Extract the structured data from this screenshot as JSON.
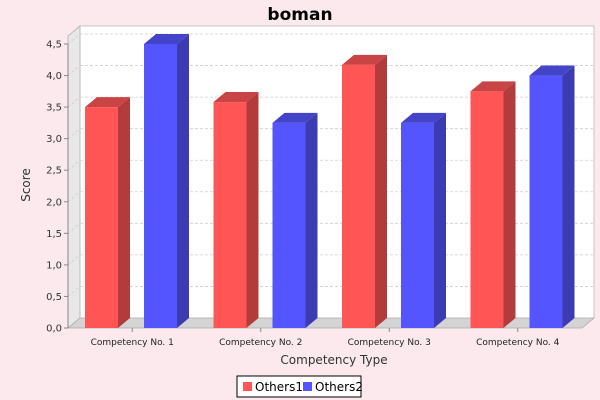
{
  "chart_data": {
    "type": "bar",
    "title": "boman",
    "xlabel": "Competency Type",
    "ylabel": "Score",
    "categories": [
      "Competency No. 1",
      "Competency No. 2",
      "Competency No. 3",
      "Competency No. 4"
    ],
    "series": [
      {
        "name": "Others1",
        "values": [
          3.5,
          3.58,
          4.17,
          3.75
        ]
      },
      {
        "name": "Others2",
        "values": [
          4.5,
          3.25,
          3.25,
          4.0
        ]
      }
    ],
    "ylim": [
      0,
      4.5
    ],
    "yticks": [
      "0,0",
      "0,5",
      "1,0",
      "1,5",
      "2,0",
      "2,5",
      "3,0",
      "3,5",
      "4,0",
      "4,5"
    ],
    "grid": true,
    "legend_position": "bottom",
    "colors": {
      "series": [
        "#ff5555",
        "#5555ff"
      ],
      "series_side": [
        "#b23b3b",
        "#3b3bb2"
      ],
      "series_top": [
        "#c94444",
        "#4444c9"
      ],
      "plot_background": "#ffffff",
      "page_background": "#fbe9ee"
    }
  }
}
